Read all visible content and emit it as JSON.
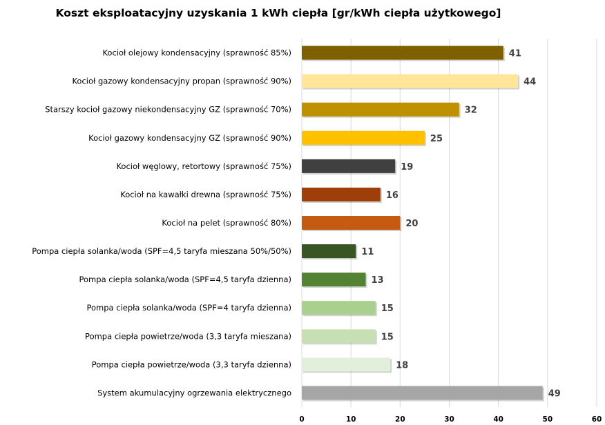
{
  "chart_data": {
    "type": "bar",
    "orientation": "horizontal",
    "title": "Koszt eksploatacyjny uzyskania 1 kWh ciepła [gr/kWh ciepła użytkowego]",
    "xlabel": "",
    "ylabel": "",
    "xlim": [
      0,
      60
    ],
    "xticks": [
      "0",
      "10",
      "20",
      "30",
      "40",
      "50",
      "60"
    ],
    "grid": true,
    "legend": "none",
    "categories": [
      "Kocioł olejowy kondensacyjny (sprawność 85%)",
      "Kocioł gazowy kondensacyjny propan (sprawność 90%)",
      "Starszy kocioł gazowy niekondensacyjny GZ (sprawność 70%)",
      "Kocioł gazowy kondensacyjny GZ (sprawność 90%)",
      "Kocioł węglowy, retortowy (sprawność 75%)",
      "Kocioł na kawałki drewna (sprawność 75%)",
      "Kocioł na pelet (sprawność 80%)",
      "Pompa ciepła solanka/woda (SPF=4,5 taryfa mieszana 50%/50%)",
      "Pompa ciepła solanka/woda (SPF=4,5 taryfa dzienna)",
      "Pompa ciepła solanka/woda (SPF=4 taryfa dzienna)",
      "Pompa ciepła powietrze/woda (3,3 taryfa mieszana)",
      "Pompa ciepła powietrze/woda (3,3 taryfa dzienna)",
      "System akumulacyjny ogrzewania elektrycznego"
    ],
    "values": [
      41,
      44,
      32,
      25,
      19,
      16,
      20,
      11,
      13,
      15,
      15,
      18,
      49
    ],
    "data_labels": [
      "41",
      "44",
      "32",
      "25",
      "19",
      "16",
      "20",
      "11",
      "13",
      "15",
      "15",
      "18",
      "49"
    ],
    "colors": [
      "#7f6000",
      "#ffe699",
      "#bf9000",
      "#ffc000",
      "#404040",
      "#9e3f0a",
      "#c55a11",
      "#375623",
      "#548235",
      "#a9d08e",
      "#c6e0b4",
      "#e2efda",
      "#a6a6a6"
    ],
    "gridline_color": "#d9d9d9"
  }
}
